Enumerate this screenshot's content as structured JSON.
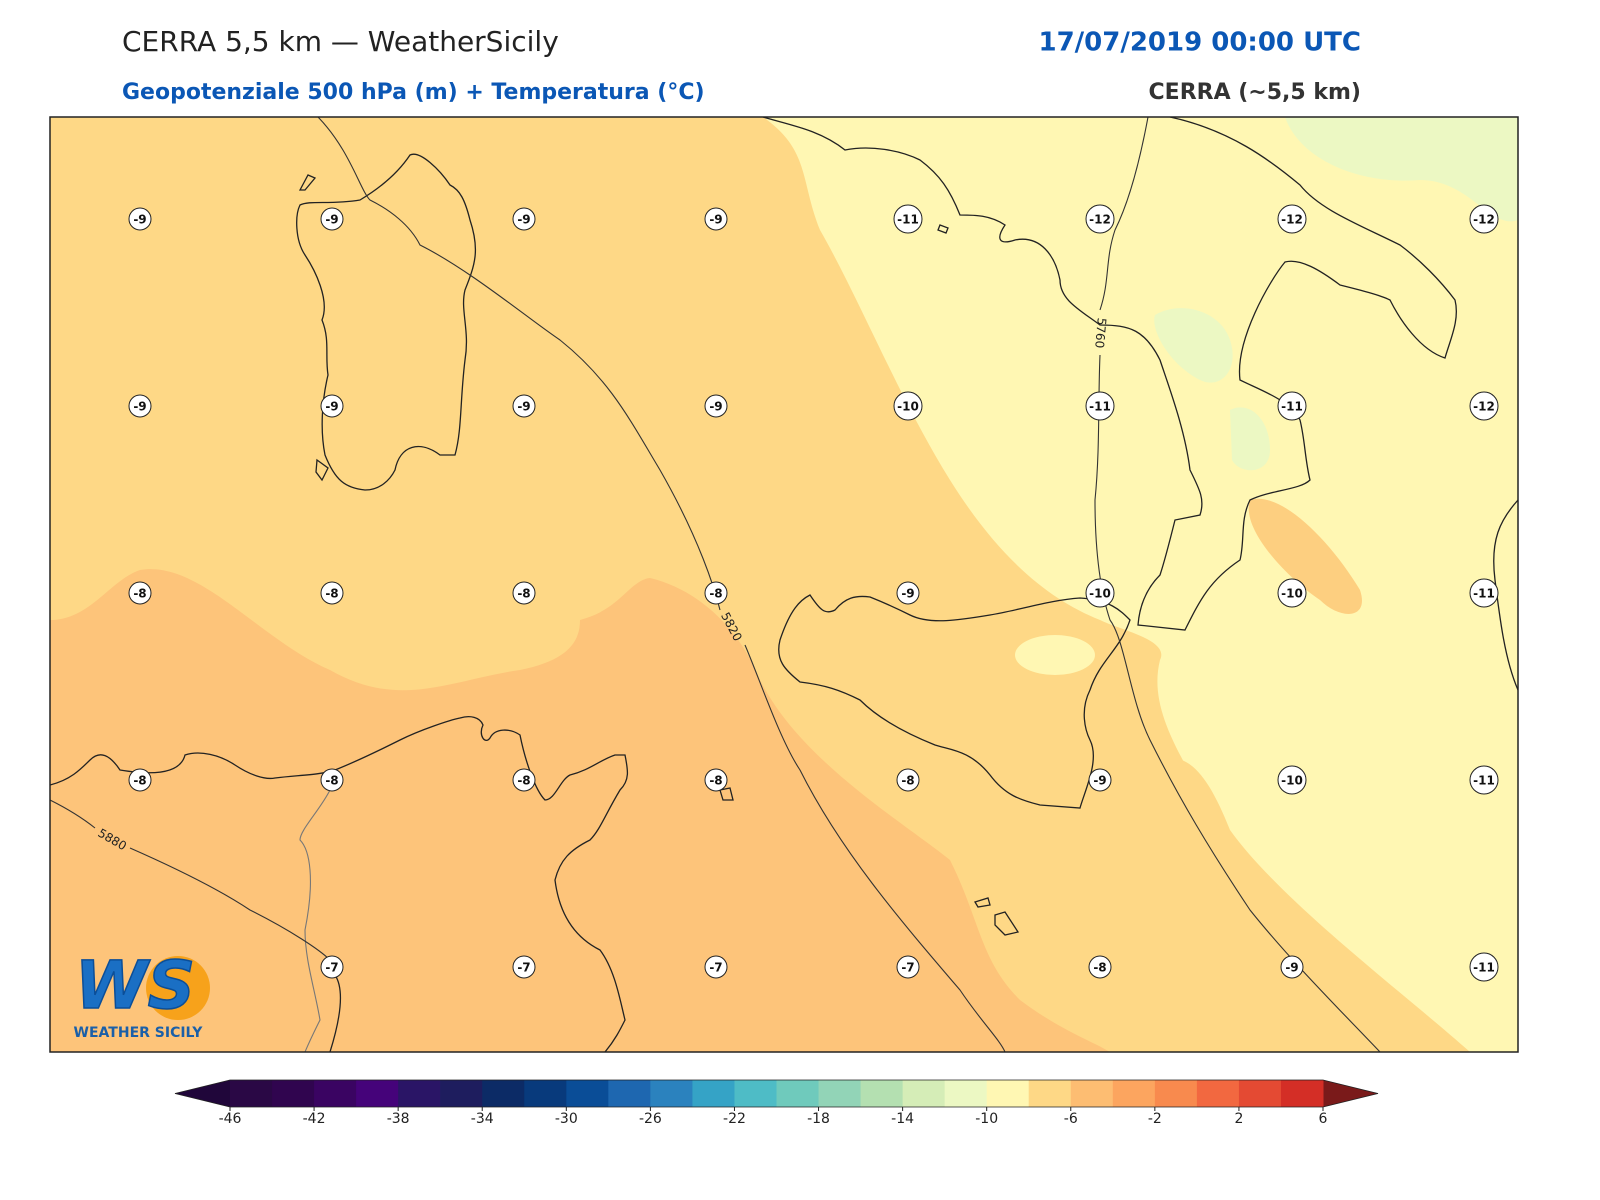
{
  "header": {
    "title": "CERRA 5,5 km — WeatherSicily",
    "subtitle": "Geopotenziale 500 hPa (m) + Temperatura (°C)",
    "datetime": "17/07/2019 00:00 UTC",
    "model": "CERRA (~5,5 km)"
  },
  "map": {
    "temperature_labels": [
      [
        -9,
        -9,
        -9,
        -9,
        -11,
        -12,
        -12,
        -12
      ],
      [
        -9,
        -9,
        -9,
        -9,
        -10,
        -11,
        -11,
        -12
      ],
      [
        -8,
        -8,
        -8,
        -8,
        -9,
        -10,
        -10,
        -11
      ],
      [
        -8,
        -8,
        -8,
        -8,
        -8,
        -9,
        -10,
        -11
      ],
      [
        null,
        -7,
        -7,
        -7,
        -7,
        -8,
        -9,
        -11
      ]
    ],
    "contour_labels": [
      5760,
      5820,
      5880
    ]
  },
  "colorbar": {
    "ticks": [
      -46,
      -42,
      -38,
      -34,
      -30,
      -26,
      -22,
      -18,
      -14,
      -10,
      -6,
      -2,
      2,
      6
    ],
    "levels": [
      -46,
      -44,
      -42,
      -40,
      -38,
      -36,
      -34,
      -32,
      -30,
      -28,
      -26,
      -24,
      -22,
      -20,
      -18,
      -16,
      -14,
      -12,
      -10,
      -8,
      -6,
      -4,
      -2,
      0,
      2,
      4,
      6
    ],
    "colors": [
      "#2a0845",
      "#30054f",
      "#3a0462",
      "#45037a",
      "#2a1566",
      "#1e1d5e",
      "#0c2b66",
      "#083a7c",
      "#0a4d97",
      "#1e67b0",
      "#2b82be",
      "#35a3c6",
      "#4ebcc6",
      "#6fcabc",
      "#92d4b7",
      "#b4e0b1",
      "#d5edb7",
      "#ecf8c3",
      "#fff7b3",
      "#fed886",
      "#fdbd72",
      "#fca55f",
      "#f88a4e",
      "#f26840",
      "#e44a33",
      "#d42e26"
    ],
    "under_color": "#20063a",
    "over_color": "#7a1a1a"
  },
  "logo": {
    "mark": "WS",
    "text": "WEATHER SICILY"
  }
}
